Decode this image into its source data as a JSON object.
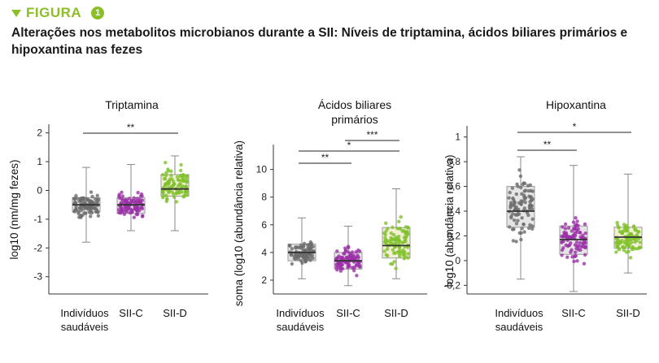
{
  "header": {
    "figure_label": "FIGURA",
    "figure_number": "1"
  },
  "title": "Alterações nos metabolitos microbianos durante a SII: Níveis de triptamina, ácidos biliares primários e hipoxantina nas fezes",
  "colors": {
    "accent": "#8cbf26",
    "healthy": "#6b6b6b",
    "ibs_c": "#9b30a8",
    "ibs_d": "#7fc22a",
    "box_fill": "#cfcfcf"
  },
  "chart_data": [
    {
      "type": "box",
      "title": "Triptamina",
      "ylabel": "log10 (nm/mg fezes)",
      "ylim": [
        -3.6,
        2.3
      ],
      "yticks": [
        "2",
        "1",
        "0",
        "-1",
        "-2",
        "-3"
      ],
      "categories": [
        "Indivíduos saudáveis",
        "SII-C",
        "SII-D"
      ],
      "boxes": [
        {
          "name": "Indivíduos saudáveis",
          "whisker_low": -1.8,
          "q1": -0.75,
          "median": -0.5,
          "q3": -0.25,
          "whisker_high": 0.8
        },
        {
          "name": "SII-C",
          "whisker_low": -1.4,
          "q1": -0.8,
          "median": -0.5,
          "q3": -0.25,
          "whisker_high": 0.9
        },
        {
          "name": "SII-D",
          "whisker_low": -1.4,
          "q1": -0.2,
          "median": 0.05,
          "q3": 0.55,
          "whisker_high": 1.2
        }
      ],
      "brackets": [
        {
          "from": "Indivíduos saudáveis",
          "to": "SII-D",
          "label": "**"
        }
      ]
    },
    {
      "type": "box",
      "title": "Ácidos biliares primários",
      "ylabel": "soma (log10 (abundância relativa)",
      "ylim": [
        1.0,
        11.8
      ],
      "yticks": [
        "10",
        "8",
        "6",
        "4",
        "2"
      ],
      "categories": [
        "Indivíduos saudáveis",
        "SII-C",
        "SII-D"
      ],
      "boxes": [
        {
          "name": "Indivíduos saudáveis",
          "whisker_low": 2.1,
          "q1": 3.4,
          "median": 4.0,
          "q3": 4.6,
          "whisker_high": 6.5
        },
        {
          "name": "SII-C",
          "whisker_low": 1.6,
          "q1": 2.8,
          "median": 3.4,
          "q3": 4.0,
          "whisker_high": 5.9
        },
        {
          "name": "SII-D",
          "whisker_low": 2.1,
          "q1": 3.6,
          "median": 4.5,
          "q3": 5.8,
          "whisker_high": 8.6
        }
      ],
      "brackets": [
        {
          "from": "Indivíduos saudáveis",
          "to": "SII-C",
          "label": "**"
        },
        {
          "from": "Indivíduos saudáveis",
          "to": "SII-D",
          "label": "*"
        },
        {
          "from": "SII-C",
          "to": "SII-D",
          "label": "***"
        }
      ]
    },
    {
      "type": "box",
      "title": "Hipoxantina",
      "ylabel": "log10 (abundância relativa)",
      "ylim": [
        -0.27,
        1.09
      ],
      "yticks": [
        "1",
        "0,8",
        "0,6",
        "0,4",
        "0,2",
        "0",
        "-0,2"
      ],
      "categories": [
        "Indivíduos saudáveis",
        "SII-C",
        "SII-D"
      ],
      "boxes": [
        {
          "name": "Indivíduos saudáveis",
          "whisker_low": -0.15,
          "q1": 0.27,
          "median": 0.4,
          "q3": 0.6,
          "whisker_high": 0.84
        },
        {
          "name": "SII-C",
          "whisker_low": -0.25,
          "q1": 0.05,
          "median": 0.17,
          "q3": 0.28,
          "whisker_high": 0.77
        },
        {
          "name": "SII-D",
          "whisker_low": -0.1,
          "q1": 0.1,
          "median": 0.19,
          "q3": 0.27,
          "whisker_high": 0.7
        }
      ],
      "brackets": [
        {
          "from": "Indivíduos saudáveis",
          "to": "SII-C",
          "label": "**"
        },
        {
          "from": "Indivíduos saudáveis",
          "to": "SII-D",
          "label": "*"
        }
      ]
    }
  ]
}
